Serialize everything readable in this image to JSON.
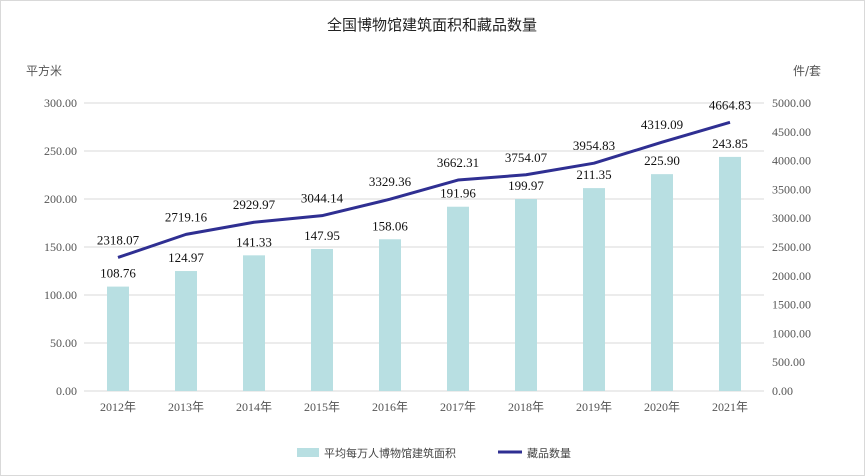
{
  "chart_data": {
    "type": "bar+line",
    "title": "全国博物馆建筑面积和藏品数量",
    "ylabel_left": "平方米",
    "ylabel_right": "件/套",
    "categories": [
      "2012年",
      "2013年",
      "2014年",
      "2015年",
      "2016年",
      "2017年",
      "2018年",
      "2019年",
      "2020年",
      "2021年"
    ],
    "series": [
      {
        "name": "平均每万人博物馆建筑面积",
        "type": "bar",
        "axis": "left",
        "color": "#b8dfe2",
        "values": [
          108.76,
          124.97,
          141.33,
          147.95,
          158.06,
          191.96,
          199.97,
          211.35,
          225.9,
          243.85
        ],
        "labels": [
          "108.76",
          "124.97",
          "141.33",
          "147.95",
          "158.06",
          "191.96",
          "199.97",
          "211.35",
          "225.90",
          "243.85"
        ]
      },
      {
        "name": "藏品数量",
        "type": "line",
        "axis": "right",
        "color": "#2f2f92",
        "values": [
          2318.07,
          2719.16,
          2929.97,
          3044.14,
          3329.36,
          3662.31,
          3754.07,
          3954.83,
          4319.09,
          4664.83
        ],
        "labels": [
          "2318.07",
          "2719.16",
          "2929.97",
          "3044.14",
          "3329.36",
          "3662.31",
          "3754.07",
          "3954.83",
          "4319.09",
          "4664.83"
        ]
      }
    ],
    "ylim_left": [
      0,
      300
    ],
    "ylim_right": [
      0,
      5000
    ],
    "left_ticks": [
      "0.00",
      "50.00",
      "100.00",
      "150.00",
      "200.00",
      "250.00",
      "300.00"
    ],
    "right_ticks": [
      "0.00",
      "500.00",
      "1000.00",
      "1500.00",
      "2000.00",
      "2500.00",
      "3000.00",
      "3500.00",
      "4000.00",
      "4500.00",
      "5000.00"
    ],
    "grid": true,
    "legend_position": "bottom"
  }
}
